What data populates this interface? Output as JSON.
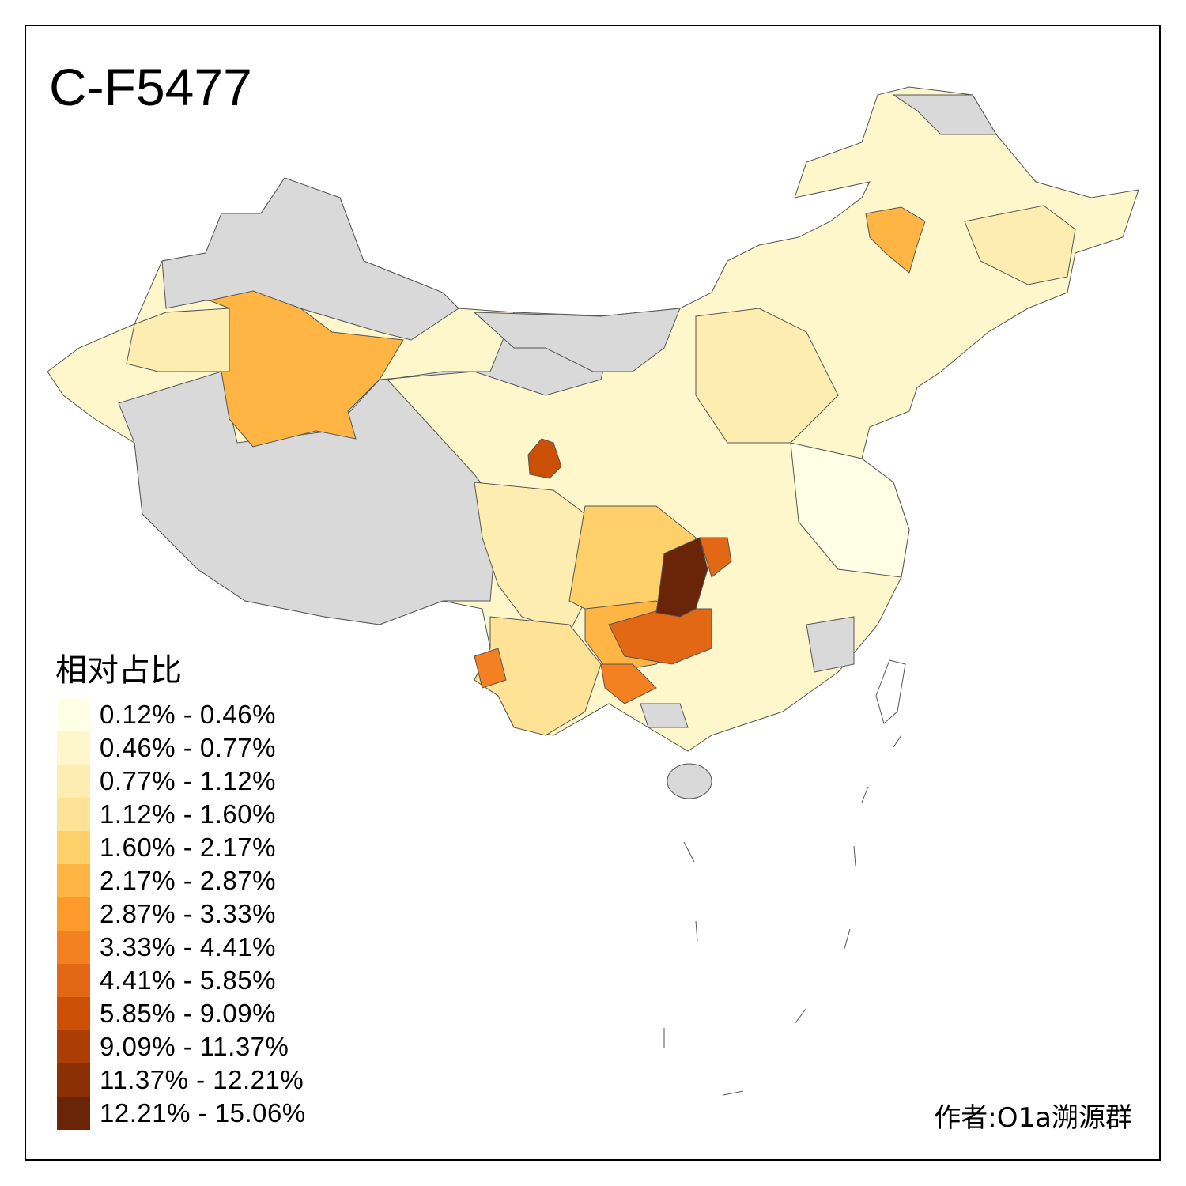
{
  "title": "C-F5477",
  "legend": {
    "title": "相对占比",
    "no_data_color": "#D9D9D9",
    "items": [
      {
        "label": "0.12% - 0.46%",
        "color": "#FFFFE5"
      },
      {
        "label": "0.46% - 0.77%",
        "color": "#FFF7CC"
      },
      {
        "label": "0.77% - 1.12%",
        "color": "#FEEDB0"
      },
      {
        "label": "1.12% - 1.60%",
        "color": "#FEE295"
      },
      {
        "label": "1.60% - 2.17%",
        "color": "#FED06A"
      },
      {
        "label": "2.17% - 2.87%",
        "color": "#FEB544"
      },
      {
        "label": "2.87% - 3.33%",
        "color": "#FD9A2C"
      },
      {
        "label": "3.33% - 4.41%",
        "color": "#F38021"
      },
      {
        "label": "4.41% - 5.85%",
        "color": "#E26816"
      },
      {
        "label": "5.85% - 9.09%",
        "color": "#CC4F06"
      },
      {
        "label": "9.09% - 11.37%",
        "color": "#AC3D04"
      },
      {
        "label": "11.37% - 12.21%",
        "color": "#8B2F05"
      },
      {
        "label": "12.21% - 15.06%",
        "color": "#6A2407"
      }
    ]
  },
  "author": "作者:O1a溯源群"
}
